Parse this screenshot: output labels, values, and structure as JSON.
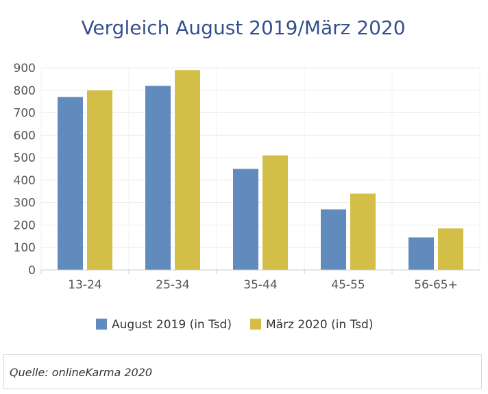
{
  "chart_data": {
    "type": "bar",
    "title": "Vergleich August 2019/März 2020",
    "xlabel": "",
    "ylabel": "",
    "categories": [
      "13-24",
      "25-34",
      "35-44",
      "45-55",
      "56-65+"
    ],
    "series": [
      {
        "name": "August 2019 (in Tsd)",
        "values": [
          770,
          820,
          450,
          270,
          145
        ],
        "color": "#618bbd"
      },
      {
        "name": "März 2020 (in Tsd)",
        "values": [
          800,
          890,
          510,
          340,
          185
        ],
        "color": "#d3bf48"
      }
    ],
    "ylim": [
      0,
      900
    ],
    "yticks": [
      0,
      100,
      200,
      300,
      400,
      500,
      600,
      700,
      800,
      900
    ],
    "grid": true,
    "legend_position": "bottom"
  },
  "source": {
    "text": "Quelle: onlineKarma 2020"
  }
}
